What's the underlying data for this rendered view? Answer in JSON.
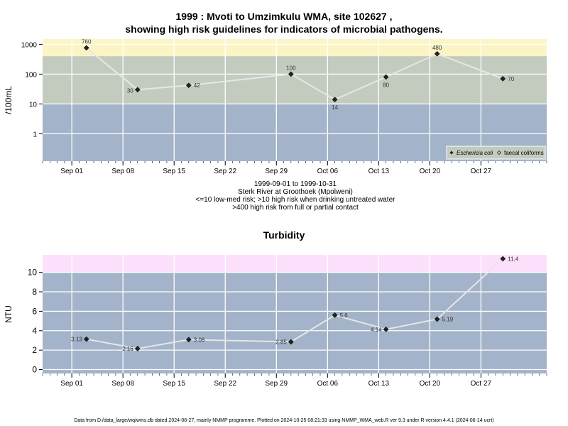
{
  "chart_data": [
    {
      "type": "line",
      "title_line1": "1999 : Mvoti to Umzimkulu WMA, site 102627 ,",
      "title_line2": "showing high risk guidelines for indicators of microbial pathogens.",
      "ylabel": "/100mL",
      "yscale": "log",
      "ylim": [
        0.12,
        1500
      ],
      "yticks": [
        {
          "v": 1,
          "label": "1"
        },
        {
          "v": 10,
          "label": "10"
        },
        {
          "v": 100,
          "label": "100"
        },
        {
          "v": 1000,
          "label": "1000"
        }
      ],
      "x_range": [
        "1999-08-28",
        "1999-11-05"
      ],
      "xticks": [
        {
          "date": "1999-09-01",
          "label": "Sep 01"
        },
        {
          "date": "1999-09-08",
          "label": "Sep 08"
        },
        {
          "date": "1999-09-15",
          "label": "Sep 15"
        },
        {
          "date": "1999-09-22",
          "label": "Sep 22"
        },
        {
          "date": "1999-09-29",
          "label": "Sep 29"
        },
        {
          "date": "1999-10-06",
          "label": "Oct 06"
        },
        {
          "date": "1999-10-13",
          "label": "Oct 13"
        },
        {
          "date": "1999-10-20",
          "label": "Oct 20"
        },
        {
          "date": "1999-10-27",
          "label": "Oct 27"
        }
      ],
      "bands": [
        {
          "from": 0.12,
          "to": 10,
          "color": "#a3b3c9"
        },
        {
          "from": 10,
          "to": 400,
          "color": "#c3cbbf"
        },
        {
          "from": 400,
          "to": 1500,
          "color": "#fbf5c6"
        }
      ],
      "series": [
        {
          "name": "Eschericia coli",
          "points": [
            {
              "date": "1999-09-03",
              "value": 760,
              "label": "760"
            },
            {
              "date": "1999-09-10",
              "value": 30,
              "label": "30"
            },
            {
              "date": "1999-09-17",
              "value": 42,
              "label": "42"
            },
            {
              "date": "1999-10-01",
              "value": 100,
              "label": "100"
            },
            {
              "date": "1999-10-07",
              "value": 14,
              "label": "14"
            },
            {
              "date": "1999-10-14",
              "value": 80,
              "label": "80"
            },
            {
              "date": "1999-10-21",
              "value": 480,
              "label": "480"
            },
            {
              "date": "1999-10-30",
              "value": 70,
              "label": "70"
            }
          ]
        }
      ],
      "legend": {
        "position": "bottom-right",
        "entries": [
          "Eschericia coli",
          "faecal coliforms"
        ]
      },
      "caption_lines": [
        "1999-09-01 to 1999-10-31",
        "Sterk River at Groothoek (Mpolweni)",
        "<=10 low-med risk; >10 high risk when drinking untreated water",
        ">400 high risk from full or partial contact"
      ]
    },
    {
      "type": "line",
      "title": "Turbidity",
      "ylabel": "NTU",
      "yscale": "linear",
      "ylim": [
        -0.4,
        11.8
      ],
      "yticks": [
        {
          "v": 0,
          "label": "0"
        },
        {
          "v": 2,
          "label": "2"
        },
        {
          "v": 4,
          "label": "4"
        },
        {
          "v": 6,
          "label": "6"
        },
        {
          "v": 8,
          "label": "8"
        },
        {
          "v": 10,
          "label": "10"
        }
      ],
      "x_range": [
        "1999-08-28",
        "1999-11-05"
      ],
      "xticks": [
        {
          "date": "1999-09-01",
          "label": "Sep 01"
        },
        {
          "date": "1999-09-08",
          "label": "Sep 08"
        },
        {
          "date": "1999-09-15",
          "label": "Sep 15"
        },
        {
          "date": "1999-09-22",
          "label": "Sep 22"
        },
        {
          "date": "1999-09-29",
          "label": "Sep 29"
        },
        {
          "date": "1999-10-06",
          "label": "Oct 06"
        },
        {
          "date": "1999-10-13",
          "label": "Oct 13"
        },
        {
          "date": "1999-10-20",
          "label": "Oct 20"
        },
        {
          "date": "1999-10-27",
          "label": "Oct 27"
        }
      ],
      "bands": [
        {
          "from": -0.4,
          "to": 10,
          "color": "#a3b3c9"
        },
        {
          "from": 10,
          "to": 11.8,
          "color": "#fde0fc"
        }
      ],
      "series": [
        {
          "points": [
            {
              "date": "1999-09-03",
              "value": 3.13,
              "label": "3.13"
            },
            {
              "date": "1999-09-10",
              "value": 2.16,
              "label": "2.16"
            },
            {
              "date": "1999-09-17",
              "value": 3.08,
              "label": "3.08"
            },
            {
              "date": "1999-10-01",
              "value": 2.85,
              "label": "2.85"
            },
            {
              "date": "1999-10-07",
              "value": 5.6,
              "label": "5.6"
            },
            {
              "date": "1999-10-14",
              "value": 4.14,
              "label": "4.14"
            },
            {
              "date": "1999-10-21",
              "value": 5.19,
              "label": "5.19"
            },
            {
              "date": "1999-10-30",
              "value": 11.4,
              "label": "11.4"
            }
          ]
        }
      ]
    }
  ],
  "footer": "Data from D:/data_large/wq/wms.db dated 2024-08-27, mainly NMMP programme. Plotted on 2024-10-25 08:21:33 using NMMP_WMA_web.R ver 9.3 under R version 4.4.1 (2024-06-14 ucrt)"
}
